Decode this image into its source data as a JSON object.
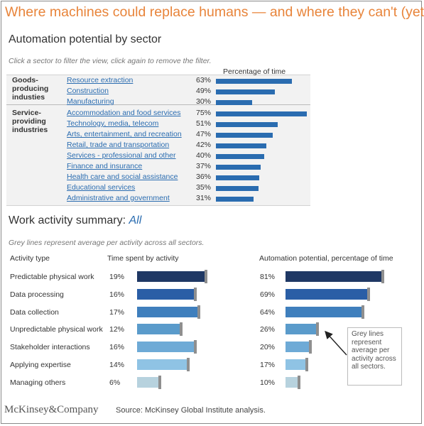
{
  "title": "Where machines could replace humans — and where they can't (yet)",
  "sector_section": {
    "heading": "Automation potential by sector",
    "hint": "Click a sector to filter the view, click again to remove the filter.",
    "column_header": "Percentage of time"
  },
  "activity_section": {
    "heading_prefix": "Work activity summary: ",
    "heading_filter": "All",
    "hint": "Grey lines represent average per activity across all sectors.",
    "col_activity": "Activity type",
    "col_time": "Time spent by activity",
    "col_automation": "Automation potential, percentage of time"
  },
  "callout": "Grey lines represent average per activity across all sectors.",
  "footer": {
    "logo": "McKinsey&Company",
    "source": "Source: McKinsey Global Institute analysis."
  },
  "colors": {
    "title": "#e8843a",
    "sector_bar": "#2a6cb0",
    "link": "#2a6cb0",
    "average_marker": "#8f8f8f",
    "activity_shades": [
      "#1f3864",
      "#2a5ea6",
      "#3f7fbd",
      "#5a9bcb",
      "#6eaad6",
      "#8fc3e4",
      "#b7d2de"
    ]
  },
  "chart_data": [
    {
      "type": "bar",
      "orientation": "horizontal",
      "title": "Automation potential by sector",
      "value_header": "Percentage of time",
      "unit": "%",
      "groups": [
        {
          "label": "Goods-producing industies",
          "categories": [
            "Resource extraction",
            "Construction",
            "Manufacturing"
          ],
          "values": [
            63,
            49,
            30
          ]
        },
        {
          "label": "Service-providing industries",
          "categories": [
            "Accommodation and food services",
            "Technology, media, telecom",
            "Arts, entertainment, and recreation",
            "Retail, trade and transportation",
            "Services - professional and other",
            "Finance and insurance",
            "Health care and social assistance",
            "Educational services",
            "Administrative and government"
          ],
          "values": [
            75,
            51,
            47,
            42,
            40,
            37,
            36,
            35,
            31
          ]
        }
      ]
    },
    {
      "type": "bar",
      "orientation": "horizontal",
      "title": "Work activity summary: All",
      "unit": "%",
      "categories": [
        "Predictable physical work",
        "Data processing",
        "Data collection",
        "Unpredictable physical work",
        "Stakeholder interactions",
        "Applying expertise",
        "Managing others"
      ],
      "series": [
        {
          "name": "Time spent by activity",
          "values": [
            19,
            16,
            17,
            12,
            16,
            14,
            6
          ],
          "xlim": [
            0,
            20
          ]
        },
        {
          "name": "Automation potential, percentage of time",
          "values": [
            81,
            69,
            64,
            26,
            20,
            17,
            10
          ],
          "xlim": [
            0,
            82
          ]
        }
      ]
    }
  ]
}
